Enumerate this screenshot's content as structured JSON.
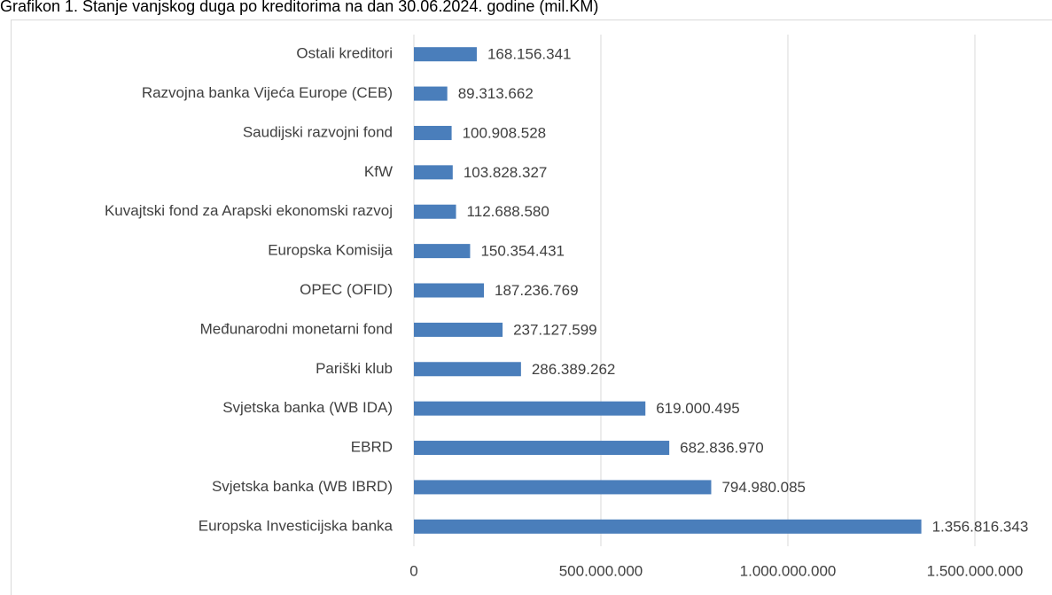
{
  "chart_data": {
    "type": "bar",
    "orientation": "horizontal",
    "title": "Grafikon 1. Stanje vanjskog duga po kreditorima na dan 30.06.2024. godine (mil.KM)",
    "categories": [
      "Ostali kreditori",
      "Razvojna banka Vijeća Europe (CEB)",
      "Saudijski razvojni fond",
      "KfW",
      "Kuvajtski fond za Arapski ekonomski razvoj",
      "Europska Komisija",
      "OPEC (OFID)",
      "Međunarodni monetarni fond",
      "Pariški klub",
      "Svjetska banka (WB IDA)",
      "EBRD",
      "Svjetska banka (WB IBRD)",
      "Europska Investicijska banka"
    ],
    "values": [
      168156341,
      89313662,
      100908528,
      103828327,
      112688580,
      150354431,
      187236769,
      237127599,
      286389262,
      619000495,
      682836970,
      794980085,
      1356816343
    ],
    "value_labels": [
      "168.156.341",
      "89.313.662",
      "100.908.528",
      "103.828.327",
      "112.688.580",
      "150.354.431",
      "187.236.769",
      "237.127.599",
      "286.389.262",
      "619.000.495",
      "682.836.970",
      "794.980.085",
      "1.356.816.343"
    ],
    "color": "#4a7ebb",
    "xlim": [
      0,
      1500000000
    ],
    "xticks": [
      0,
      {
        "value": 500000000,
        "label": "500.000.000"
      },
      {
        "value": 1000000000,
        "label": "1.000.000.000"
      },
      {
        "value": 1500000000,
        "label": "1.500.000.000"
      }
    ],
    "grid": true
  }
}
